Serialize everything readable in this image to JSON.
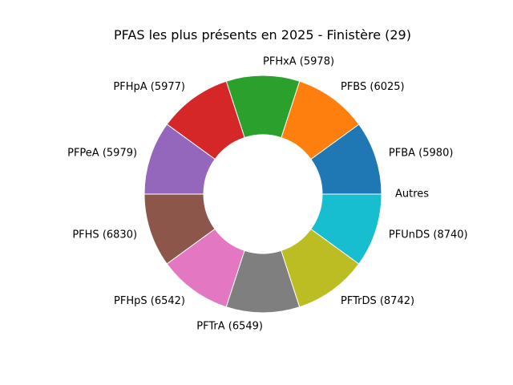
{
  "chart_data": {
    "type": "pie",
    "donut": true,
    "title": "PFAS les plus présents en 2025 - Finistère (29)",
    "start_angle_deg": 0,
    "direction": "counterclockwise",
    "slices": [
      {
        "label": "PFBA (5980)",
        "value": 1,
        "color": "#1f77b4"
      },
      {
        "label": "PFBS (6025)",
        "value": 1,
        "color": "#ff7f0e"
      },
      {
        "label": "PFHxA (5978)",
        "value": 1,
        "color": "#2ca02c"
      },
      {
        "label": "PFHpA (5977)",
        "value": 1,
        "color": "#d62728"
      },
      {
        "label": "PFPeA (5979)",
        "value": 1,
        "color": "#9467bd"
      },
      {
        "label": "PFHS (6830)",
        "value": 1,
        "color": "#8c564b"
      },
      {
        "label": "PFHpS (6542)",
        "value": 1,
        "color": "#e377c2"
      },
      {
        "label": "PFTrA (6549)",
        "value": 1,
        "color": "#7f7f7f"
      },
      {
        "label": "PFTrDS (8742)",
        "value": 1,
        "color": "#bcbd22"
      },
      {
        "label": "PFUnDS (8740)",
        "value": 1,
        "color": "#17becf"
      },
      {
        "label": "Autres",
        "value": 0,
        "color": "#1f77b4"
      }
    ]
  }
}
